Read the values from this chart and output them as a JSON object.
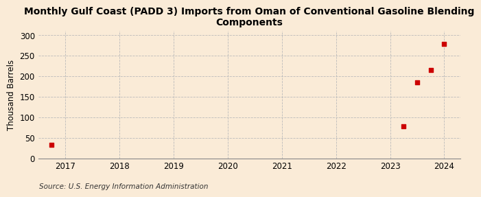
{
  "title": "Monthly Gulf Coast (PADD 3) Imports from Oman of Conventional Gasoline Blending\nComponents",
  "ylabel": "Thousand Barrels",
  "source": "Source: U.S. Energy Information Administration",
  "background_color": "#faebd7",
  "scatter_color": "#cc0000",
  "x_data": [
    2016.75,
    2023.25,
    2023.5,
    2023.75,
    2024.0
  ],
  "y_data": [
    33,
    78,
    185,
    215,
    278
  ],
  "xlim": [
    2016.5,
    2024.3
  ],
  "ylim": [
    0,
    310
  ],
  "yticks": [
    0,
    50,
    100,
    150,
    200,
    250,
    300
  ],
  "xticks": [
    2017,
    2018,
    2019,
    2020,
    2021,
    2022,
    2023,
    2024
  ],
  "grid_color": "#bbbbbb",
  "title_fontsize": 10,
  "label_fontsize": 8.5,
  "tick_fontsize": 8.5,
  "source_fontsize": 7.5,
  "marker_size": 4
}
